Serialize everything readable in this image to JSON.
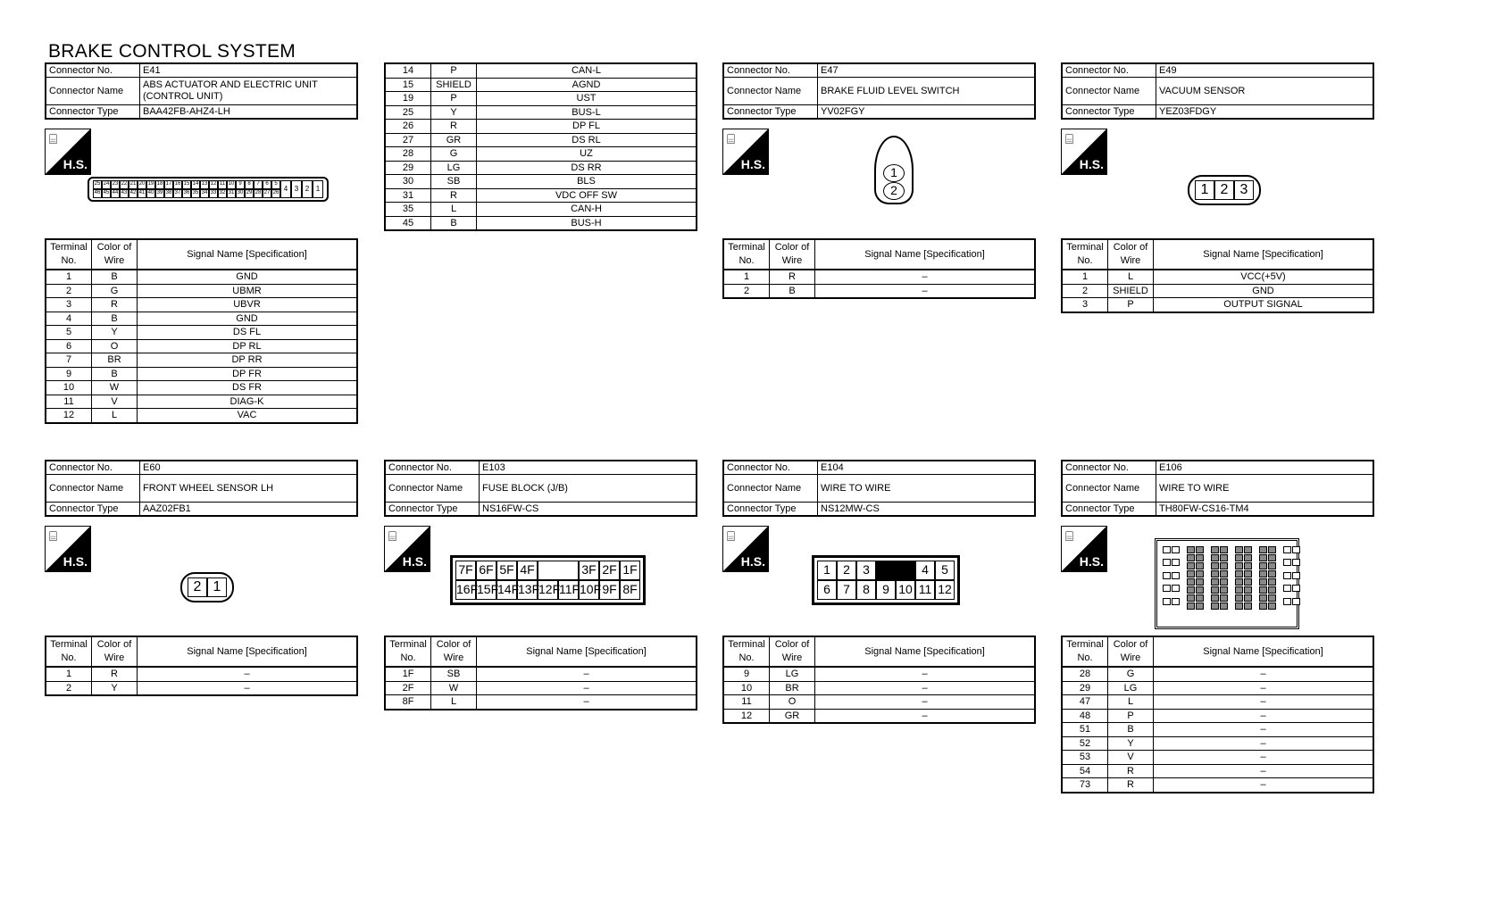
{
  "title": "BRAKE CONTROL SYSTEM",
  "labels": {
    "connector_no": "Connector No.",
    "connector_name": "Connector Name",
    "connector_type": "Connector Type",
    "terminal_no": "Terminal No.",
    "color_of_wire": "Color of Wire",
    "signal_name": "Signal Name [Specification]",
    "hs": "H.S."
  },
  "connectors": [
    {
      "no": "E41",
      "name": "ABS ACTUATOR AND ELECTRIC UNIT (CONTROL UNIT)",
      "type": "BAA42FB-AHZ4-LH",
      "pins_top": [
        "25",
        "24",
        "23",
        "22",
        "21",
        "20",
        "19",
        "18",
        "17",
        "16",
        "15",
        "14",
        "13",
        "12",
        "11",
        "10",
        "9",
        "8",
        "7",
        "6",
        "5"
      ],
      "pins_bottom": [
        "46",
        "45",
        "44",
        "43",
        "42",
        "41",
        "40",
        "39",
        "38",
        "37",
        "36",
        "35",
        "34",
        "33",
        "32",
        "31",
        "30",
        "29",
        "28",
        "27",
        "26"
      ],
      "pins_big": [
        "4",
        "3",
        "2",
        "1"
      ],
      "rows": [
        [
          "1",
          "B",
          "GND"
        ],
        [
          "2",
          "G",
          "UBMR"
        ],
        [
          "3",
          "R",
          "UBVR"
        ],
        [
          "4",
          "B",
          "GND"
        ],
        [
          "5",
          "Y",
          "DS FL"
        ],
        [
          "6",
          "O",
          "DP RL"
        ],
        [
          "7",
          "BR",
          "DP RR"
        ],
        [
          "9",
          "B",
          "DP FR"
        ],
        [
          "10",
          "W",
          "DS FR"
        ],
        [
          "11",
          "V",
          "DIAG-K"
        ],
        [
          "12",
          "L",
          "VAC"
        ]
      ]
    },
    {
      "no": "E47",
      "name": "BRAKE FLUID LEVEL SWITCH",
      "type": "YV02FGY",
      "pins": [
        "1",
        "2"
      ],
      "rows": [
        [
          "1",
          "R",
          "–"
        ],
        [
          "2",
          "B",
          "–"
        ]
      ]
    },
    {
      "no": "E49",
      "name": "VACUUM SENSOR",
      "type": "YEZ03FDGY",
      "pins": [
        "1",
        "2",
        "3"
      ],
      "rows": [
        [
          "1",
          "L",
          "VCC(+5V)"
        ],
        [
          "2",
          "SHIELD",
          "GND"
        ],
        [
          "3",
          "P",
          "OUTPUT SIGNAL"
        ]
      ]
    },
    {
      "no": "E60",
      "name": "FRONT WHEEL SENSOR LH",
      "type": "AAZ02FB1",
      "pins": [
        "2",
        "1"
      ],
      "rows": [
        [
          "1",
          "R",
          "–"
        ],
        [
          "2",
          "Y",
          "–"
        ]
      ]
    },
    {
      "no": "E103",
      "name": "FUSE BLOCK (J/B)",
      "type": "NS16FW-CS",
      "pins_top": [
        "7F",
        "6F",
        "5F",
        "4F",
        "",
        "3F",
        "2F",
        "1F"
      ],
      "pins_bottom": [
        "16F",
        "15F",
        "14F",
        "13F",
        "12F",
        "11F",
        "10F",
        "9F",
        "8F"
      ],
      "rows": [
        [
          "1F",
          "SB",
          "–"
        ],
        [
          "2F",
          "W",
          "–"
        ],
        [
          "8F",
          "L",
          "–"
        ]
      ]
    },
    {
      "no": "E104",
      "name": "WIRE TO WIRE",
      "type": "NS12MW-CS",
      "pins_top": [
        "1",
        "2",
        "3",
        "",
        "4",
        "5"
      ],
      "pins_bottom": [
        "6",
        "7",
        "8",
        "9",
        "10",
        "11",
        "12"
      ],
      "rows": [
        [
          "9",
          "LG",
          "–"
        ],
        [
          "10",
          "BR",
          "–"
        ],
        [
          "11",
          "O",
          "–"
        ],
        [
          "12",
          "GR",
          "–"
        ]
      ]
    },
    {
      "no": "E106",
      "name": "WIRE TO WIRE",
      "type": "TH80FW-CS16-TM4",
      "rows": [
        [
          "28",
          "G",
          "–"
        ],
        [
          "29",
          "LG",
          "–"
        ],
        [
          "47",
          "L",
          "–"
        ],
        [
          "48",
          "P",
          "–"
        ],
        [
          "51",
          "B",
          "–"
        ],
        [
          "52",
          "Y",
          "–"
        ],
        [
          "53",
          "V",
          "–"
        ],
        [
          "54",
          "R",
          "–"
        ],
        [
          "73",
          "R",
          "–"
        ]
      ]
    }
  ],
  "continuation_rows": [
    [
      "14",
      "P",
      "CAN-L"
    ],
    [
      "15",
      "SHIELD",
      "AGND"
    ],
    [
      "19",
      "P",
      "UST"
    ],
    [
      "25",
      "Y",
      "BUS-L"
    ],
    [
      "26",
      "R",
      "DP FL"
    ],
    [
      "27",
      "GR",
      "DS RL"
    ],
    [
      "28",
      "G",
      "UZ"
    ],
    [
      "29",
      "LG",
      "DS RR"
    ],
    [
      "30",
      "SB",
      "BLS"
    ],
    [
      "31",
      "R",
      "VDC OFF SW"
    ],
    [
      "35",
      "L",
      "CAN-H"
    ],
    [
      "45",
      "B",
      "BUS-H"
    ]
  ]
}
